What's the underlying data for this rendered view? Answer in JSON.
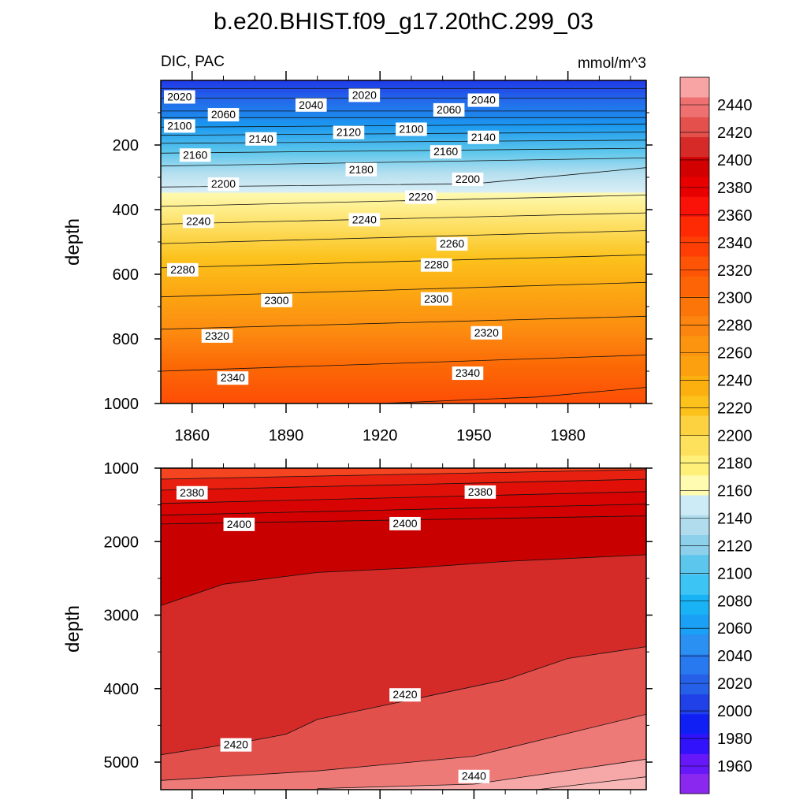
{
  "chart_data": [
    {
      "type": "contour",
      "title": "b.e20.BHIST.f09_g17.20thC.299_03",
      "left_label": "DIC, PAC",
      "right_label": "mmol/m^3",
      "ylabel": "depth",
      "xlabel": "",
      "xlim": [
        1850,
        2005
      ],
      "ylim": [
        1000,
        0
      ],
      "yticks": [
        200,
        400,
        600,
        800,
        1000
      ],
      "yticks_minor": [
        100,
        300,
        500,
        700,
        900
      ],
      "xticks": [
        1860,
        1890,
        1920,
        1950,
        1980
      ],
      "xticks_minor": [
        1870,
        1880,
        1900,
        1910,
        1930,
        1940,
        1960,
        1970,
        1990,
        2000
      ],
      "xtick_labels": [
        "1860",
        "1890",
        "1920",
        "1950",
        "1980"
      ],
      "ytick_labels": [
        "200",
        "400",
        "600",
        "800",
        "1000"
      ],
      "contour_interval": 20,
      "contour_depths": [
        {
          "value": 2020,
          "x": [
            1850,
            2005
          ],
          "y": [
            25,
            25
          ]
        },
        {
          "value": 2040,
          "x": [
            1850,
            2005
          ],
          "y": [
            55,
            55
          ]
        },
        {
          "value": 2060,
          "x": [
            1850,
            2005
          ],
          "y": [
            95,
            95
          ]
        },
        {
          "value": 2080,
          "x": [
            1850,
            2005
          ],
          "y": [
            115,
            115
          ]
        },
        {
          "value": 2100,
          "x": [
            1850,
            2005
          ],
          "y": [
            145,
            135
          ]
        },
        {
          "value": 2120,
          "x": [
            1850,
            2005
          ],
          "y": [
            170,
            160
          ]
        },
        {
          "value": 2140,
          "x": [
            1850,
            2005
          ],
          "y": [
            195,
            185
          ]
        },
        {
          "value": 2160,
          "x": [
            1850,
            2005
          ],
          "y": [
            225,
            210
          ]
        },
        {
          "value": 2180,
          "x": [
            1850,
            2005
          ],
          "y": [
            265,
            240
          ]
        },
        {
          "value": 2200,
          "x": [
            1850,
            1950,
            2005
          ],
          "y": [
            330,
            320,
            270
          ]
        },
        {
          "value": 2220,
          "x": [
            1850,
            2005
          ],
          "y": [
            390,
            355
          ]
        },
        {
          "value": 2240,
          "x": [
            1850,
            2005
          ],
          "y": [
            445,
            410
          ]
        },
        {
          "value": 2260,
          "x": [
            1850,
            2005
          ],
          "y": [
            505,
            465
          ]
        },
        {
          "value": 2280,
          "x": [
            1850,
            2005
          ],
          "y": [
            580,
            540
          ]
        },
        {
          "value": 2300,
          "x": [
            1850,
            2005
          ],
          "y": [
            670,
            625
          ]
        },
        {
          "value": 2320,
          "x": [
            1850,
            2005
          ],
          "y": [
            770,
            730
          ]
        },
        {
          "value": 2340,
          "x": [
            1850,
            2005
          ],
          "y": [
            900,
            850
          ]
        },
        {
          "value": 2360,
          "x": [
            1920,
            1970,
            2005
          ],
          "y": [
            1000,
            980,
            950
          ]
        }
      ],
      "contour_labels": [
        {
          "text": "2020",
          "x": 1856,
          "y": 50
        },
        {
          "text": "2060",
          "x": 1870,
          "y": 105
        },
        {
          "text": "2040",
          "x": 1898,
          "y": 75
        },
        {
          "text": "2020",
          "x": 1915,
          "y": 45
        },
        {
          "text": "2060",
          "x": 1942,
          "y": 90
        },
        {
          "text": "2040",
          "x": 1953,
          "y": 60
        },
        {
          "text": "2100",
          "x": 1856,
          "y": 140
        },
        {
          "text": "2140",
          "x": 1882,
          "y": 180
        },
        {
          "text": "2120",
          "x": 1910,
          "y": 160
        },
        {
          "text": "2100",
          "x": 1930,
          "y": 150
        },
        {
          "text": "2140",
          "x": 1953,
          "y": 175
        },
        {
          "text": "2160",
          "x": 1861,
          "y": 230
        },
        {
          "text": "2180",
          "x": 1914,
          "y": 275
        },
        {
          "text": "2160",
          "x": 1941,
          "y": 220
        },
        {
          "text": "2200",
          "x": 1870,
          "y": 320
        },
        {
          "text": "2200",
          "x": 1948,
          "y": 305
        },
        {
          "text": "2220",
          "x": 1933,
          "y": 360
        },
        {
          "text": "2240",
          "x": 1862,
          "y": 435
        },
        {
          "text": "2240",
          "x": 1915,
          "y": 430
        },
        {
          "text": "2260",
          "x": 1943,
          "y": 505
        },
        {
          "text": "2280",
          "x": 1857,
          "y": 585
        },
        {
          "text": "2280",
          "x": 1938,
          "y": 570
        },
        {
          "text": "2300",
          "x": 1887,
          "y": 680
        },
        {
          "text": "2300",
          "x": 1938,
          "y": 675
        },
        {
          "text": "2320",
          "x": 1868,
          "y": 790
        },
        {
          "text": "2320",
          "x": 1954,
          "y": 780
        },
        {
          "text": "2340",
          "x": 1873,
          "y": 920
        },
        {
          "text": "2340",
          "x": 1948,
          "y": 905
        }
      ]
    },
    {
      "type": "contour",
      "ylabel": "depth",
      "xlim": [
        1850,
        2005
      ],
      "ylim": [
        5375,
        1000
      ],
      "yticks": [
        1000,
        2000,
        3000,
        4000,
        5000
      ],
      "yticks_minor": [
        1500,
        2500,
        3500,
        4500
      ],
      "xticks": [
        1860,
        1890,
        1920,
        1950,
        1980
      ],
      "xticks_minor": [
        1870,
        1880,
        1900,
        1910,
        1930,
        1940,
        1960,
        1970,
        1990,
        2000
      ],
      "ytick_labels": [
        "1000",
        "2000",
        "3000",
        "4000",
        "5000"
      ],
      "contour_depths": [
        {
          "value": 2360,
          "x": [
            1850,
            2005
          ],
          "y": [
            1150,
            1020
          ]
        },
        {
          "value": 2370,
          "x": [
            1850,
            2005
          ],
          "y": [
            1300,
            1150
          ]
        },
        {
          "value": 2380,
          "x": [
            1850,
            2005
          ],
          "y": [
            1480,
            1320
          ]
        },
        {
          "value": 2390,
          "x": [
            1850,
            2005
          ],
          "y": [
            1640,
            1490
          ]
        },
        {
          "value": 2400,
          "x": [
            1850,
            2005
          ],
          "y": [
            1760,
            1650
          ]
        },
        {
          "value": 2410,
          "x": [
            1850,
            1870,
            1900,
            1930,
            1960,
            2005
          ],
          "y": [
            2870,
            2580,
            2420,
            2360,
            2270,
            2180
          ]
        },
        {
          "value": 2420,
          "x": [
            1850,
            1880,
            1890,
            1900,
            1930,
            1960,
            1980,
            2005
          ],
          "y": [
            4900,
            4700,
            4620,
            4420,
            4150,
            3880,
            3590,
            3430
          ]
        },
        {
          "value": 2430,
          "x": [
            1850,
            1900,
            1950,
            2005
          ],
          "y": [
            5250,
            5120,
            4920,
            4350
          ]
        },
        {
          "value": 2440,
          "x": [
            1900,
            1950,
            2005
          ],
          "y": [
            5360,
            5300,
            4960
          ]
        },
        {
          "value": 2450,
          "x": [
            1970,
            2005
          ],
          "y": [
            5375,
            5200
          ]
        }
      ],
      "contour_labels": [
        {
          "text": "2380",
          "x": 1860,
          "y": 1330
        },
        {
          "text": "2380",
          "x": 1952,
          "y": 1320
        },
        {
          "text": "2400",
          "x": 1875,
          "y": 1760
        },
        {
          "text": "2400",
          "x": 1928,
          "y": 1750
        },
        {
          "text": "2420",
          "x": 1874,
          "y": 4760
        },
        {
          "text": "2420",
          "x": 1928,
          "y": 4080
        },
        {
          "text": "2440",
          "x": 1950,
          "y": 5190
        }
      ]
    },
    {
      "type": "colorbar",
      "levels": [
        1960,
        1980,
        2000,
        2020,
        2040,
        2060,
        2080,
        2100,
        2120,
        2140,
        2160,
        2180,
        2200,
        2220,
        2240,
        2260,
        2280,
        2300,
        2320,
        2340,
        2360,
        2380,
        2400,
        2420,
        2440
      ],
      "tick_labels": [
        "1960",
        "1980",
        "2000",
        "2020",
        "2040",
        "2060",
        "2080",
        "2100",
        "2120",
        "2140",
        "2160",
        "2180",
        "2200",
        "2220",
        "2240",
        "2260",
        "2280",
        "2300",
        "2320",
        "2340",
        "2360",
        "2380",
        "2400",
        "2420",
        "2440"
      ],
      "colors": [
        "#8a28f0",
        "#6618f8",
        "#3212fa",
        "#1020f5",
        "#2040e8",
        "#2660e8",
        "#2878ef",
        "#2a90f2",
        "#1aa0f5",
        "#18b2f5",
        "#3cc4f4",
        "#5cc6ec",
        "#8cd0ec",
        "#b0dcee",
        "#ccebf6",
        "#fffbb0",
        "#fff07a",
        "#fde05c",
        "#fcd240",
        "#fcc11a",
        "#fcb010",
        "#fca010",
        "#fc9410",
        "#fc8510",
        "#fc7508",
        "#fc6406",
        "#fd5406",
        "#fe3e04",
        "#fd2a04",
        "#fa1208",
        "#e80000",
        "#d20000",
        "#d62a28",
        "#e4504c",
        "#ee7070",
        "#f8a4a4"
      ]
    }
  ]
}
